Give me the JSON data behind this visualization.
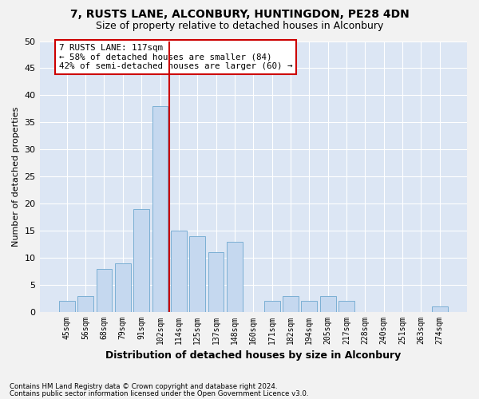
{
  "title1": "7, RUSTS LANE, ALCONBURY, HUNTINGDON, PE28 4DN",
  "title2": "Size of property relative to detached houses in Alconbury",
  "xlabel": "Distribution of detached houses by size in Alconbury",
  "ylabel": "Number of detached properties",
  "categories": [
    "45sqm",
    "56sqm",
    "68sqm",
    "79sqm",
    "91sqm",
    "102sqm",
    "114sqm",
    "125sqm",
    "137sqm",
    "148sqm",
    "160sqm",
    "171sqm",
    "182sqm",
    "194sqm",
    "205sqm",
    "217sqm",
    "228sqm",
    "240sqm",
    "251sqm",
    "263sqm",
    "274sqm"
  ],
  "values": [
    2,
    3,
    8,
    9,
    19,
    38,
    15,
    14,
    11,
    13,
    0,
    2,
    3,
    2,
    3,
    2,
    0,
    0,
    0,
    0,
    1
  ],
  "bar_color": "#c5d8ef",
  "bar_edge_color": "#7bafd4",
  "plot_bg_color": "#dce6f4",
  "fig_bg_color": "#f2f2f2",
  "grid_color": "#ffffff",
  "vline_color": "#cc0000",
  "vline_x": 5.5,
  "annotation_line1": "7 RUSTS LANE: 117sqm",
  "annotation_line2": "← 58% of detached houses are smaller (84)",
  "annotation_line3": "42% of semi-detached houses are larger (60) →",
  "annotation_box_color": "#ffffff",
  "annotation_box_edge": "#cc0000",
  "ylim": [
    0,
    50
  ],
  "yticks": [
    0,
    5,
    10,
    15,
    20,
    25,
    30,
    35,
    40,
    45,
    50
  ],
  "footnote1": "Contains HM Land Registry data © Crown copyright and database right 2024.",
  "footnote2": "Contains public sector information licensed under the Open Government Licence v3.0."
}
